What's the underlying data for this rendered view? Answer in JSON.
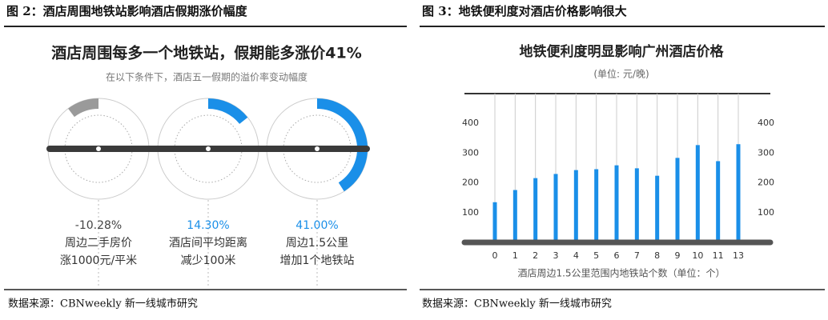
{
  "captions": [
    "图 2：酒店周围地铁站影响酒店假期涨价幅度",
    "图 3：地铁便利度对酒店价格影响很大"
  ],
  "sources": [
    "数据来源：CBNweekly 新一线城市研究",
    "数据来源：CBNweekly 新一线城市研究"
  ],
  "chart_data": [
    {
      "type": "gauge",
      "title": "酒店周围每多一个地铁站，假期能多涨价41%",
      "subtitle": "在以下条件下，酒店五一假期的溢价率变动幅度",
      "categories": [
        [
          "周边二手房价",
          "涨1000元/平米"
        ],
        [
          "酒店间平均距离",
          "减少100米"
        ],
        [
          "周边1.5公里",
          "增加1个地铁站"
        ]
      ],
      "values": [
        -10.28,
        14.3,
        41.0
      ],
      "value_labels": [
        "-10.28%",
        "14.30%",
        "41.00%"
      ],
      "colors": [
        "#9a9a9a",
        "#1a8fe8",
        "#1a8fe8"
      ],
      "label_colors": [
        "#444444",
        "#1a8fe8",
        "#1a8fe8"
      ]
    },
    {
      "type": "bar",
      "title": "地铁便利度明显影响广州酒店价格",
      "subtitle": "(单位: 元/晚)",
      "x_label": "酒店周边1.5公里范围内地铁站个数（单位：个）",
      "categories": [
        "0",
        "1",
        "2",
        "3",
        "4",
        "5",
        "6",
        "7",
        "8",
        "9",
        "10",
        "11",
        "13"
      ],
      "values": [
        135,
        176,
        216,
        230,
        243,
        246,
        259,
        249,
        224,
        284,
        327,
        273,
        330
      ],
      "color": "#1a8fe8",
      "ylim": [
        0,
        500
      ],
      "yticks": [
        100,
        200,
        300,
        400
      ],
      "y2lim": [
        0,
        500
      ],
      "y2ticks": [
        100,
        200,
        300,
        400
      ]
    }
  ]
}
